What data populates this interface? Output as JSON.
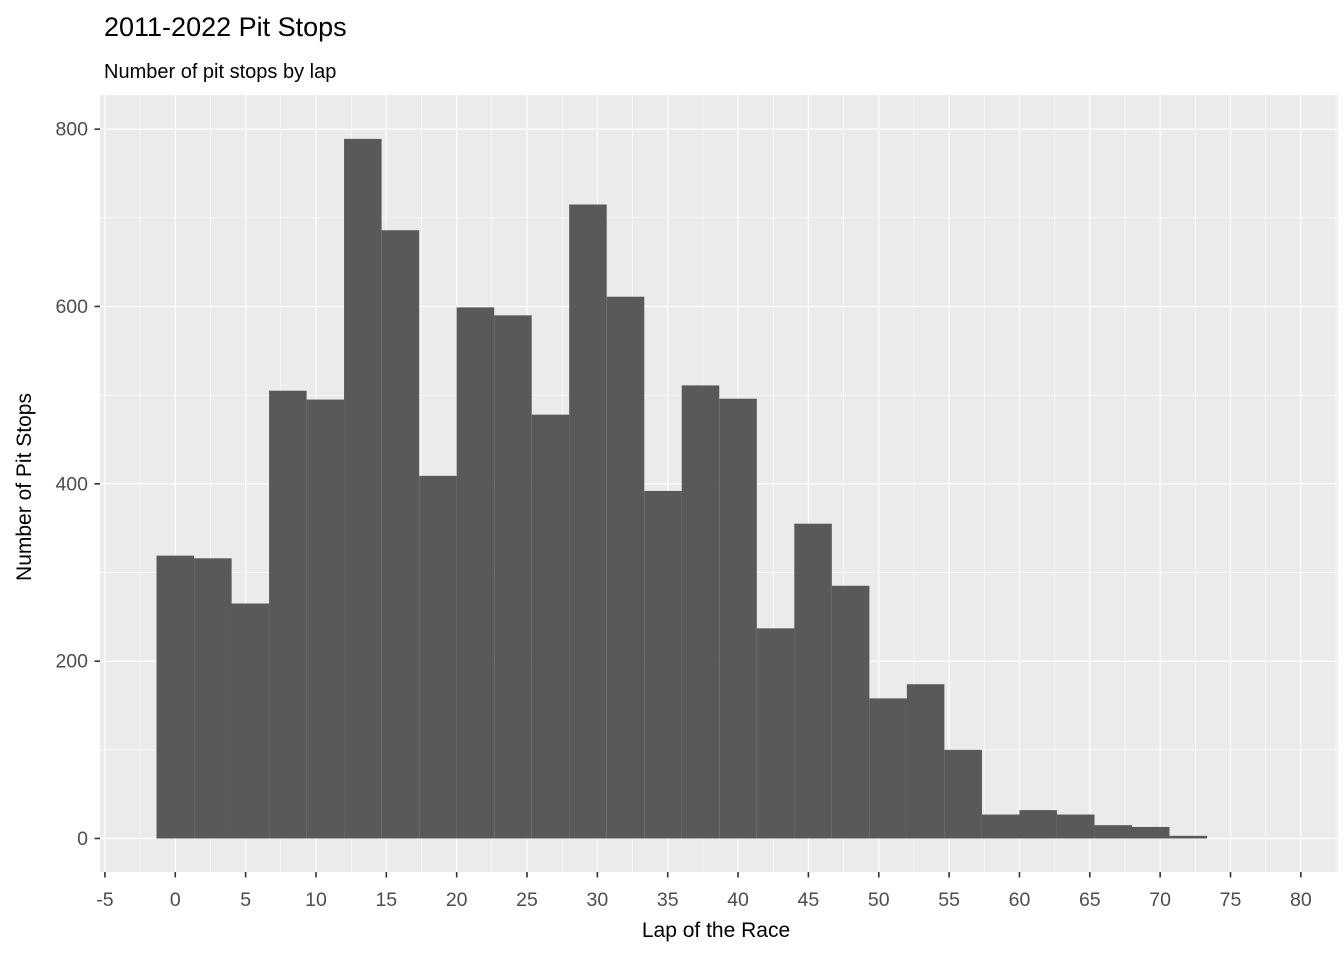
{
  "chart_data": {
    "type": "bar",
    "subtype": "histogram",
    "title": "2011-2022 Pit Stops",
    "subtitle": "Number of pit stops by lap",
    "xlabel": "Lap of the Race",
    "ylabel": "Number of Pit Stops",
    "bin_width": 2.6667,
    "bin_centers": [
      0,
      2.67,
      5.33,
      8,
      10.67,
      13.33,
      16,
      18.67,
      21.33,
      24,
      26.67,
      29.33,
      32,
      34.67,
      37.33,
      40,
      42.67,
      45.33,
      48,
      50.67,
      53.33,
      56,
      58.67,
      61.33,
      64,
      66.67,
      69.33,
      72
    ],
    "values": [
      319,
      316,
      265,
      505,
      495,
      789,
      686,
      409,
      599,
      590,
      478,
      715,
      611,
      392,
      511,
      496,
      237,
      355,
      285,
      158,
      174,
      100,
      27,
      32,
      27,
      15,
      13,
      3
    ],
    "x_ticks": [
      -5,
      0,
      5,
      10,
      15,
      20,
      25,
      30,
      35,
      40,
      45,
      50,
      55,
      60,
      65,
      70,
      75,
      80
    ],
    "y_ticks": [
      0,
      200,
      400,
      600,
      800
    ],
    "xlim": [
      -5.35,
      82.64
    ],
    "ylim": [
      -37.8,
      838.5
    ],
    "grid": "on",
    "legend": "none",
    "colors": {
      "bar": "#595959",
      "panel": "#EBEBEB",
      "background": "#FFFFFF",
      "gridline": "#FFFFFF",
      "tick_label": "#4D4D4D",
      "tick_mark": "#333333",
      "text": "#000000"
    }
  }
}
